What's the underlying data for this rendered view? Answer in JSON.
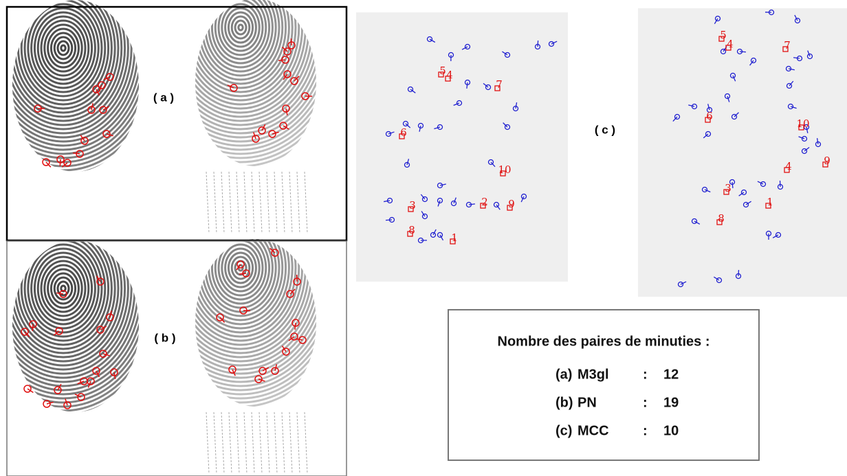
{
  "panels": {
    "a": "( a )",
    "b": "( b )",
    "c": "( c )"
  },
  "left_labels": [
    "5",
    "4",
    "7",
    "6",
    "10",
    "3",
    "2",
    "9",
    "8",
    "1"
  ],
  "right_labels": [
    "5",
    "4",
    "7",
    "6",
    "10",
    "9",
    "4",
    "3",
    "1",
    "8"
  ],
  "summary": {
    "title": "Nombre des paires de minuties :",
    "rows": [
      [
        "(a)",
        "M3gl",
        ":",
        12
      ],
      [
        "(b)",
        "PN",
        ":",
        19
      ],
      [
        "(c)",
        "MCC",
        ":",
        10
      ]
    ]
  }
}
